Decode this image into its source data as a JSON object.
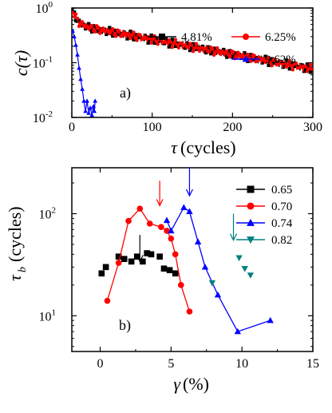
{
  "chart_data": [
    {
      "panel_label": "a)",
      "type": "line",
      "xlabel_symbol": "τ",
      "xlabel_unit": "(cycles)",
      "ylabel": "c(τ)",
      "xlim": [
        0,
        300
      ],
      "ylim_log10": [
        -2,
        0
      ],
      "yscale": "log",
      "x_tick_values": [
        0,
        100,
        200,
        300
      ],
      "x_tick_labels": [
        "0",
        "100",
        "200",
        "300"
      ],
      "y_tick_values": [
        -2,
        -1,
        0
      ],
      "y_tick_labels": [
        "10",
        "10",
        "10"
      ],
      "y_tick_exponents": [
        "-2",
        "-1",
        "0"
      ],
      "legend_position": "top-right",
      "series": [
        {
          "name": "4.81%",
          "color": "#000000",
          "marker": "square",
          "decay": {
            "amplitude": 0.5,
            "fast_amp": 0.5,
            "fast_tau": 5,
            "slow_tau": 160,
            "tail_floor": 0.04
          },
          "x_end": 300
        },
        {
          "name": "6.25%",
          "color": "#ff0000",
          "marker": "circle",
          "decay": {
            "amplitude": 0.5,
            "fast_amp": 0.5,
            "fast_tau": 5,
            "slow_tau": 160,
            "tail_floor": 0.055
          },
          "x_end": 300
        },
        {
          "name": "9.62%",
          "color": "#0000ff",
          "marker": "triangle",
          "points": [
            [
              1,
              0.38
            ],
            [
              3,
              0.3
            ],
            [
              5,
              0.21
            ],
            [
              7,
              0.14
            ],
            [
              9,
              0.08
            ],
            [
              11,
              0.05
            ],
            [
              13,
              0.033
            ],
            [
              15,
              0.02
            ],
            [
              17,
              0.013
            ],
            [
              19,
              0.02
            ],
            [
              21,
              0.012
            ],
            [
              23,
              0.015
            ],
            [
              25,
              0.011
            ],
            [
              27,
              0.016
            ],
            [
              28,
              0.013
            ],
            [
              29,
              0.02
            ]
          ]
        }
      ]
    },
    {
      "panel_label": "b)",
      "type": "scatter",
      "xlabel_symbol": "γ",
      "xlabel_unit": "(%)",
      "ylabel_symbol": "τ",
      "ylabel_sub": "b",
      "ylabel_unit": "(cycles)",
      "xlim": [
        -2,
        15
      ],
      "ylim_log10": [
        0.65,
        2.45
      ],
      "yscale": "log",
      "x_tick_values": [
        0,
        5,
        10,
        15
      ],
      "x_tick_labels": [
        "0",
        "5",
        "10",
        "15"
      ],
      "y_tick_values": [
        1,
        2
      ],
      "y_tick_labels": [
        "10",
        "10"
      ],
      "y_tick_exponents": [
        "1",
        "2"
      ],
      "legend_position": "top-right",
      "series": [
        {
          "name": "0.65",
          "color": "#000000",
          "marker": "square",
          "connected": false,
          "points": [
            [
              0.1,
              26
            ],
            [
              0.4,
              30
            ],
            [
              1.3,
              38
            ],
            [
              1.7,
              36
            ],
            [
              2.2,
              34
            ],
            [
              2.6,
              38
            ],
            [
              3.0,
              34
            ],
            [
              3.3,
              41
            ],
            [
              3.6,
              40
            ],
            [
              4.2,
              38
            ],
            [
              4.5,
              29
            ],
            [
              4.9,
              28
            ],
            [
              5.3,
              26
            ]
          ]
        },
        {
          "name": "0.70",
          "color": "#ff0000",
          "marker": "circle",
          "connected": true,
          "points": [
            [
              0.5,
              14
            ],
            [
              1.3,
              33
            ],
            [
              2.0,
              85
            ],
            [
              2.8,
              112
            ],
            [
              3.5,
              80
            ],
            [
              4.3,
              74
            ],
            [
              4.7,
              68
            ],
            [
              5.0,
              57
            ],
            [
              5.3,
              40
            ],
            [
              5.7,
              20
            ],
            [
              6.3,
              11
            ]
          ]
        },
        {
          "name": "0.74",
          "color": "#0000ff",
          "marker": "triangle",
          "connected": true,
          "points": [
            [
              4.7,
              86
            ],
            [
              5.0,
              68
            ],
            [
              5.9,
              115
            ],
            [
              6.3,
              105
            ],
            [
              6.9,
              53
            ],
            [
              7.4,
              30
            ],
            [
              8.3,
              16
            ],
            [
              9.7,
              7
            ],
            [
              12.0,
              9
            ]
          ]
        },
        {
          "name": "0.82",
          "color": "#008080",
          "marker": "triangle-down",
          "connected": false,
          "points": [
            [
              7.9,
              21
            ],
            [
              9.8,
              37
            ],
            [
              10.2,
              29
            ],
            [
              10.6,
              25
            ]
          ]
        }
      ],
      "annotations": [
        {
          "type": "arrow",
          "color": "#000000",
          "x": 2.8,
          "y_top": 62,
          "y_bottom": 34
        },
        {
          "type": "arrow",
          "color": "#ff0000",
          "x": 4.2,
          "y_top": 210,
          "y_bottom": 120
        },
        {
          "type": "arrow",
          "color": "#0000ff",
          "x": 6.3,
          "y_top": 285,
          "y_bottom": 150
        },
        {
          "type": "arrow",
          "color": "#008080",
          "x": 9.4,
          "y_top": 100,
          "y_bottom": 55
        }
      ]
    }
  ]
}
